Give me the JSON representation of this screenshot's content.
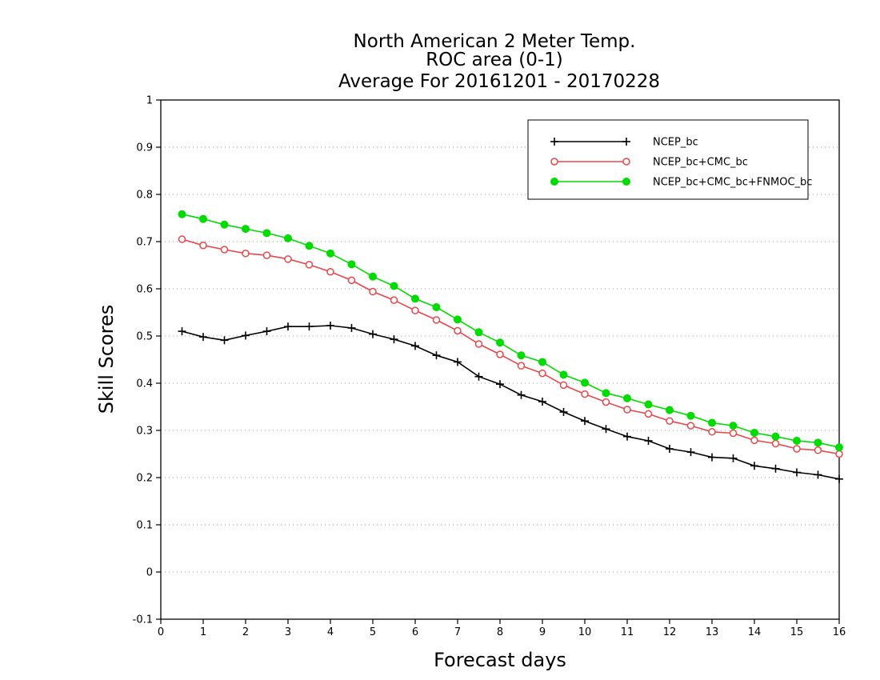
{
  "chart_data": {
    "type": "line",
    "title_lines": [
      "North American 2 Meter Temp.",
      "ROC area (0-1)",
      "Average For 20161201 - 20170228"
    ],
    "xlabel": "Forecast days",
    "ylabel": "Skill Scores",
    "xlim": [
      0,
      16
    ],
    "ylim": [
      -0.1,
      1
    ],
    "xticks": [
      0,
      1,
      2,
      3,
      4,
      5,
      6,
      7,
      8,
      9,
      10,
      11,
      12,
      13,
      14,
      15,
      16
    ],
    "yticks": [
      -0.1,
      0,
      0.1,
      0.2,
      0.3,
      0.4,
      0.5,
      0.6,
      0.7,
      0.8,
      0.9,
      1
    ],
    "ytick_labels": [
      "-0.1",
      "0",
      "0.1",
      "0.2",
      "0.3",
      "0.4",
      "0.5",
      "0.6",
      "0.7",
      "0.8",
      "0.9",
      "1"
    ],
    "grid": "horizontal dotted",
    "legend_position": "top-right",
    "x": [
      0.5,
      1,
      1.5,
      2,
      2.5,
      3,
      3.5,
      4,
      4.5,
      5,
      5.5,
      6,
      6.5,
      7,
      7.5,
      8,
      8.5,
      9,
      9.5,
      10,
      10.5,
      11,
      11.5,
      12,
      12.5,
      13,
      13.5,
      14,
      14.5,
      15,
      15.5,
      16
    ],
    "series": [
      {
        "name": "NCEP_bc",
        "color": "#000000",
        "marker": "plus",
        "values": [
          0.51,
          0.498,
          0.491,
          0.501,
          0.51,
          0.52,
          0.52,
          0.522,
          0.517,
          0.504,
          0.493,
          0.479,
          0.459,
          0.445,
          0.414,
          0.398,
          0.375,
          0.361,
          0.339,
          0.32,
          0.303,
          0.287,
          0.278,
          0.261,
          0.254,
          0.243,
          0.241,
          0.225,
          0.219,
          0.211,
          0.206,
          0.197
        ]
      },
      {
        "name": "NCEP_bc+CMC_bc",
        "color": "#e8464a",
        "marker": "open-circle",
        "values": [
          0.705,
          0.692,
          0.683,
          0.675,
          0.671,
          0.663,
          0.651,
          0.636,
          0.618,
          0.594,
          0.576,
          0.554,
          0.534,
          0.511,
          0.483,
          0.461,
          0.437,
          0.421,
          0.396,
          0.377,
          0.36,
          0.344,
          0.335,
          0.32,
          0.31,
          0.297,
          0.294,
          0.279,
          0.272,
          0.261,
          0.258,
          0.25
        ]
      },
      {
        "name": "NCEP_bc+CMC_bc+FNMOC_bc",
        "color": "#00dc00",
        "marker": "filled-circle",
        "values": [
          0.758,
          0.748,
          0.736,
          0.727,
          0.718,
          0.707,
          0.691,
          0.675,
          0.652,
          0.626,
          0.606,
          0.579,
          0.561,
          0.535,
          0.508,
          0.486,
          0.459,
          0.445,
          0.418,
          0.401,
          0.379,
          0.368,
          0.355,
          0.343,
          0.331,
          0.316,
          0.31,
          0.295,
          0.287,
          0.278,
          0.274,
          0.264
        ]
      }
    ]
  }
}
